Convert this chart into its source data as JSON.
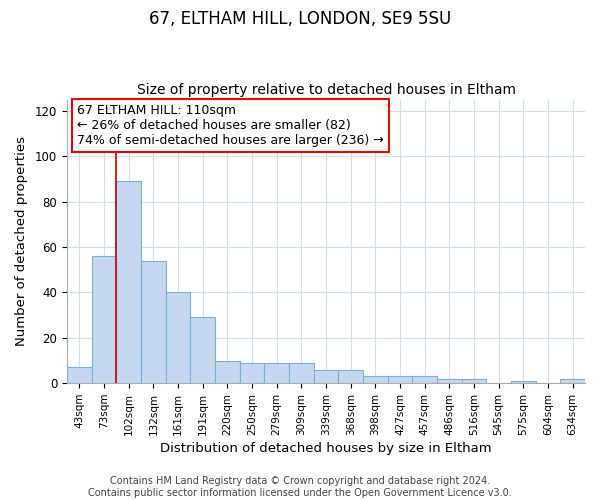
{
  "title1": "67, ELTHAM HILL, LONDON, SE9 5SU",
  "title2": "Size of property relative to detached houses in Eltham",
  "xlabel": "Distribution of detached houses by size in Eltham",
  "ylabel": "Number of detached properties",
  "categories": [
    "43sqm",
    "73sqm",
    "102sqm",
    "132sqm",
    "161sqm",
    "191sqm",
    "220sqm",
    "250sqm",
    "279sqm",
    "309sqm",
    "339sqm",
    "368sqm",
    "398sqm",
    "427sqm",
    "457sqm",
    "486sqm",
    "516sqm",
    "545sqm",
    "575sqm",
    "604sqm",
    "634sqm"
  ],
  "values": [
    7,
    56,
    89,
    54,
    40,
    29,
    10,
    9,
    9,
    9,
    6,
    6,
    3,
    3,
    3,
    2,
    2,
    0,
    1,
    0,
    2
  ],
  "bar_color": "#c5d8f0",
  "bar_edge_color": "#7bafd4",
  "red_line_index": 2,
  "annotation_box_text": "67 ELTHAM HILL: 110sqm\n← 26% of detached houses are smaller (82)\n74% of semi-detached houses are larger (236) →",
  "annotation_box_color": "white",
  "annotation_box_edge_color": "red",
  "ylim": [
    0,
    125
  ],
  "yticks": [
    0,
    20,
    40,
    60,
    80,
    100,
    120
  ],
  "grid_color": "#d0dff0",
  "bg_color": "white",
  "red_line_color": "#cc0000",
  "title1_fontsize": 12,
  "title2_fontsize": 10,
  "annotation_fontsize": 9,
  "footer": "Contains HM Land Registry data © Crown copyright and database right 2024.\nContains public sector information licensed under the Open Government Licence v3.0.",
  "footer_fontsize": 7
}
